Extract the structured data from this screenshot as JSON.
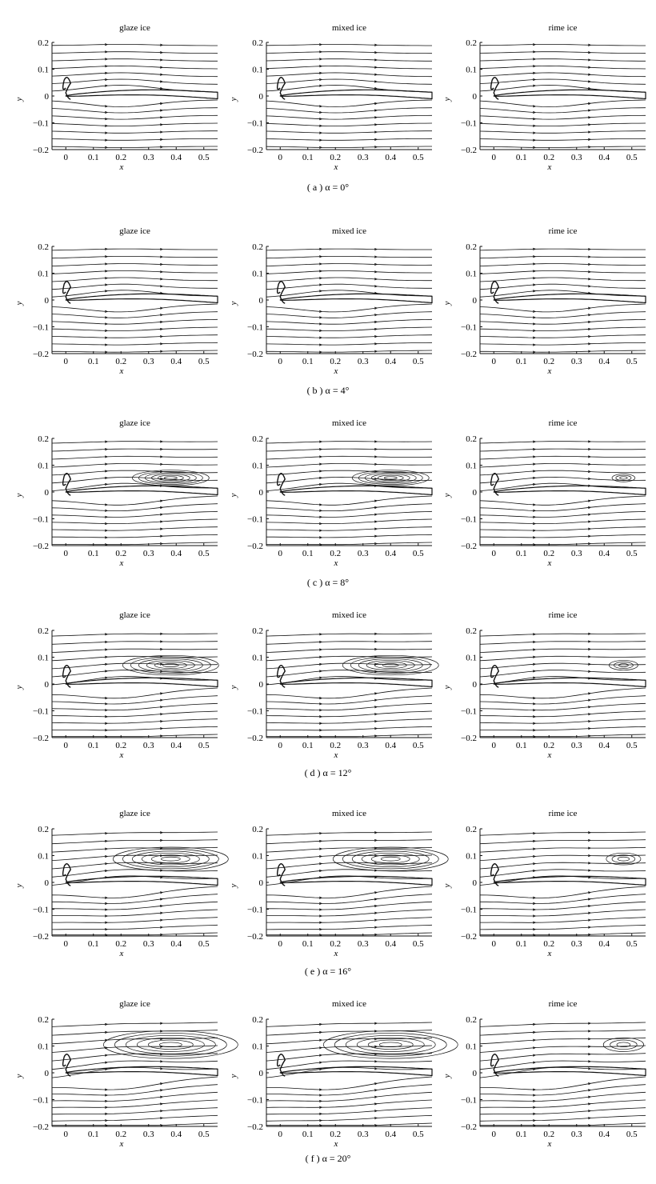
{
  "panel_titles": [
    "glaze ice",
    "mixed ice",
    "rime ice"
  ],
  "axes": {
    "xlabel": "x",
    "ylabel": "y",
    "xticks": [
      0,
      0.1,
      0.2,
      0.3,
      0.4,
      0.5
    ],
    "xtick_labels": [
      "0",
      "0.1",
      "0.2",
      "0.3",
      "0.4",
      "0.5"
    ],
    "yticks": [
      0.2,
      0.1,
      0,
      -0.1,
      -0.2
    ],
    "ytick_labels": [
      "0.2",
      "0.1",
      "0",
      "−0.1",
      "−0.2"
    ],
    "xlim": [
      -0.05,
      0.55
    ],
    "ylim": [
      -0.2,
      0.2
    ]
  },
  "rows": [
    {
      "caption": "( a )  α = 0°",
      "alpha": 0
    },
    {
      "caption": "( b )  α = 4°",
      "alpha": 4
    },
    {
      "caption": "( c )  α = 8°",
      "alpha": 8
    },
    {
      "caption": "( d )  α = 12°",
      "alpha": 12
    },
    {
      "caption": "( e )  α = 16°",
      "alpha": 16
    },
    {
      "caption": "( f )  α = 20°",
      "alpha": 20
    }
  ],
  "colors": {
    "line": "#111111",
    "background": "#ffffff"
  }
}
